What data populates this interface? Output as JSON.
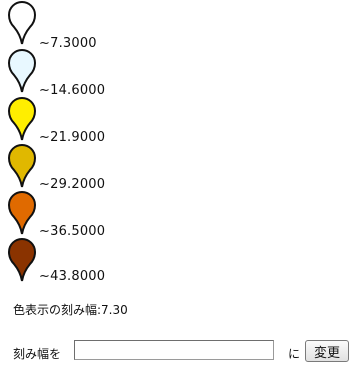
{
  "legend": {
    "items": [
      {
        "label": "~7.3000",
        "color": "#ffffff"
      },
      {
        "label": "~14.6000",
        "color": "#e8f8ff"
      },
      {
        "label": "~21.9000",
        "color": "#ffee00"
      },
      {
        "label": "~29.2000",
        "color": "#e0b800"
      },
      {
        "label": "~36.5000",
        "color": "#e06a00"
      },
      {
        "label": "~43.8000",
        "color": "#8a3300"
      }
    ]
  },
  "step": {
    "text": "色表示の刻み幅:7.30"
  },
  "form": {
    "prefix": "刻み幅を",
    "input_value": "",
    "suffix": "に",
    "button_label": "変更"
  }
}
